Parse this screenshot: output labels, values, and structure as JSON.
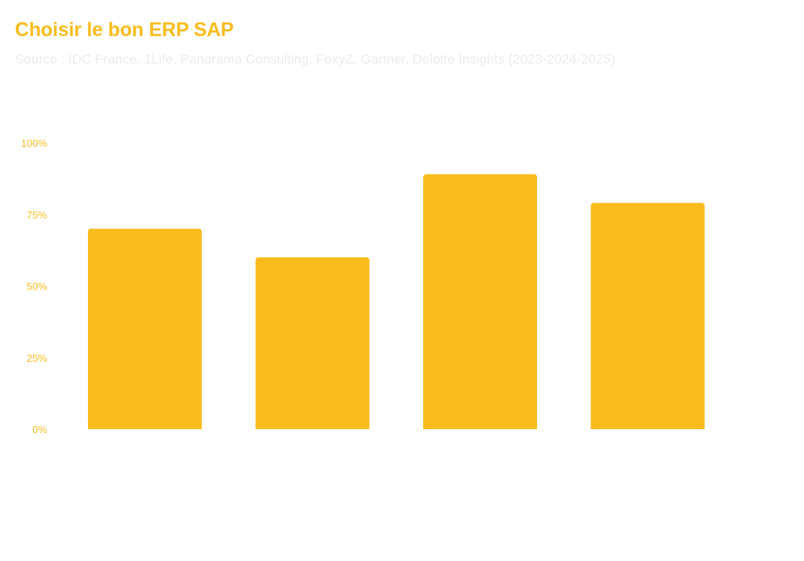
{
  "chart_data": {
    "type": "bar",
    "title": "Choisir le bon ERP SAP",
    "subtitle": "Source : IDC France, 1Life, Panorama Consulting, FoxyZ, Gartner, Delotte Insights (2023-2024-2025)",
    "categories": [
      "",
      "",
      "",
      ""
    ],
    "values": [
      70,
      60,
      89,
      79
    ],
    "ylim": [
      0,
      100
    ],
    "yticks": [
      "0%",
      "25%",
      "50%",
      "75%",
      "100%"
    ],
    "ytick_values": [
      0,
      25,
      50,
      75,
      100
    ],
    "xlabel": "",
    "ylabel": "",
    "grid": false,
    "bar_color": "#f8bc1c",
    "tick_color": "#f8bc1c"
  }
}
